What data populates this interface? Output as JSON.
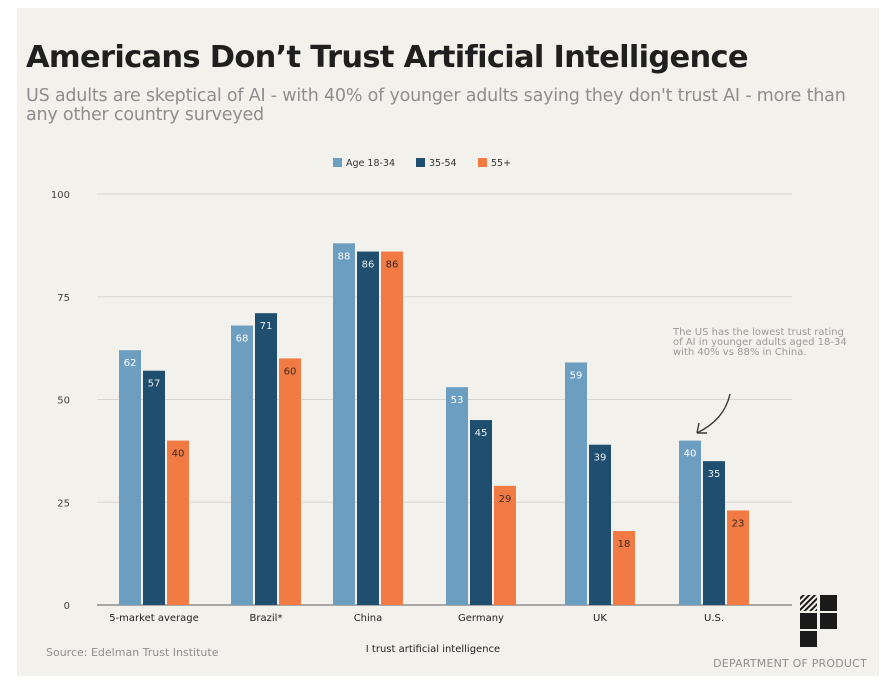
{
  "title": "Americans Don’t Trust Artificial Intelligence",
  "subtitle": "US adults are skeptical of AI - with 40% of younger adults saying they don't trust AI - more than any other country surveyed",
  "source": "Source: Edelman Trust Institute",
  "brand": "DEPARTMENT OF PRODUCT",
  "annotation": "The US has the lowest trust rating of AI in younger adults aged 18-34 with 40% vs 88% in China.",
  "colors": {
    "age_18_34": "#6b9ec0",
    "age_35_54": "#1f4e6e",
    "age_55_plus": "#f27b45"
  },
  "chart_data": {
    "type": "bar",
    "xlabel": "I trust artificial intelligence",
    "ylabel": "",
    "ylim": [
      0,
      100
    ],
    "yticks": [
      0,
      25,
      50,
      75,
      100
    ],
    "grid": true,
    "legend_position": "top-center",
    "categories": [
      "5-market average",
      "Brazil*",
      "China",
      "Germany",
      "UK",
      "U.S."
    ],
    "series": [
      {
        "name": "Age 18-34",
        "values": [
          62,
          68,
          88,
          53,
          59,
          40
        ]
      },
      {
        "name": "35-54",
        "values": [
          57,
          71,
          86,
          45,
          39,
          35
        ]
      },
      {
        "name": "55+",
        "values": [
          40,
          60,
          86,
          29,
          18,
          23
        ]
      }
    ]
  }
}
